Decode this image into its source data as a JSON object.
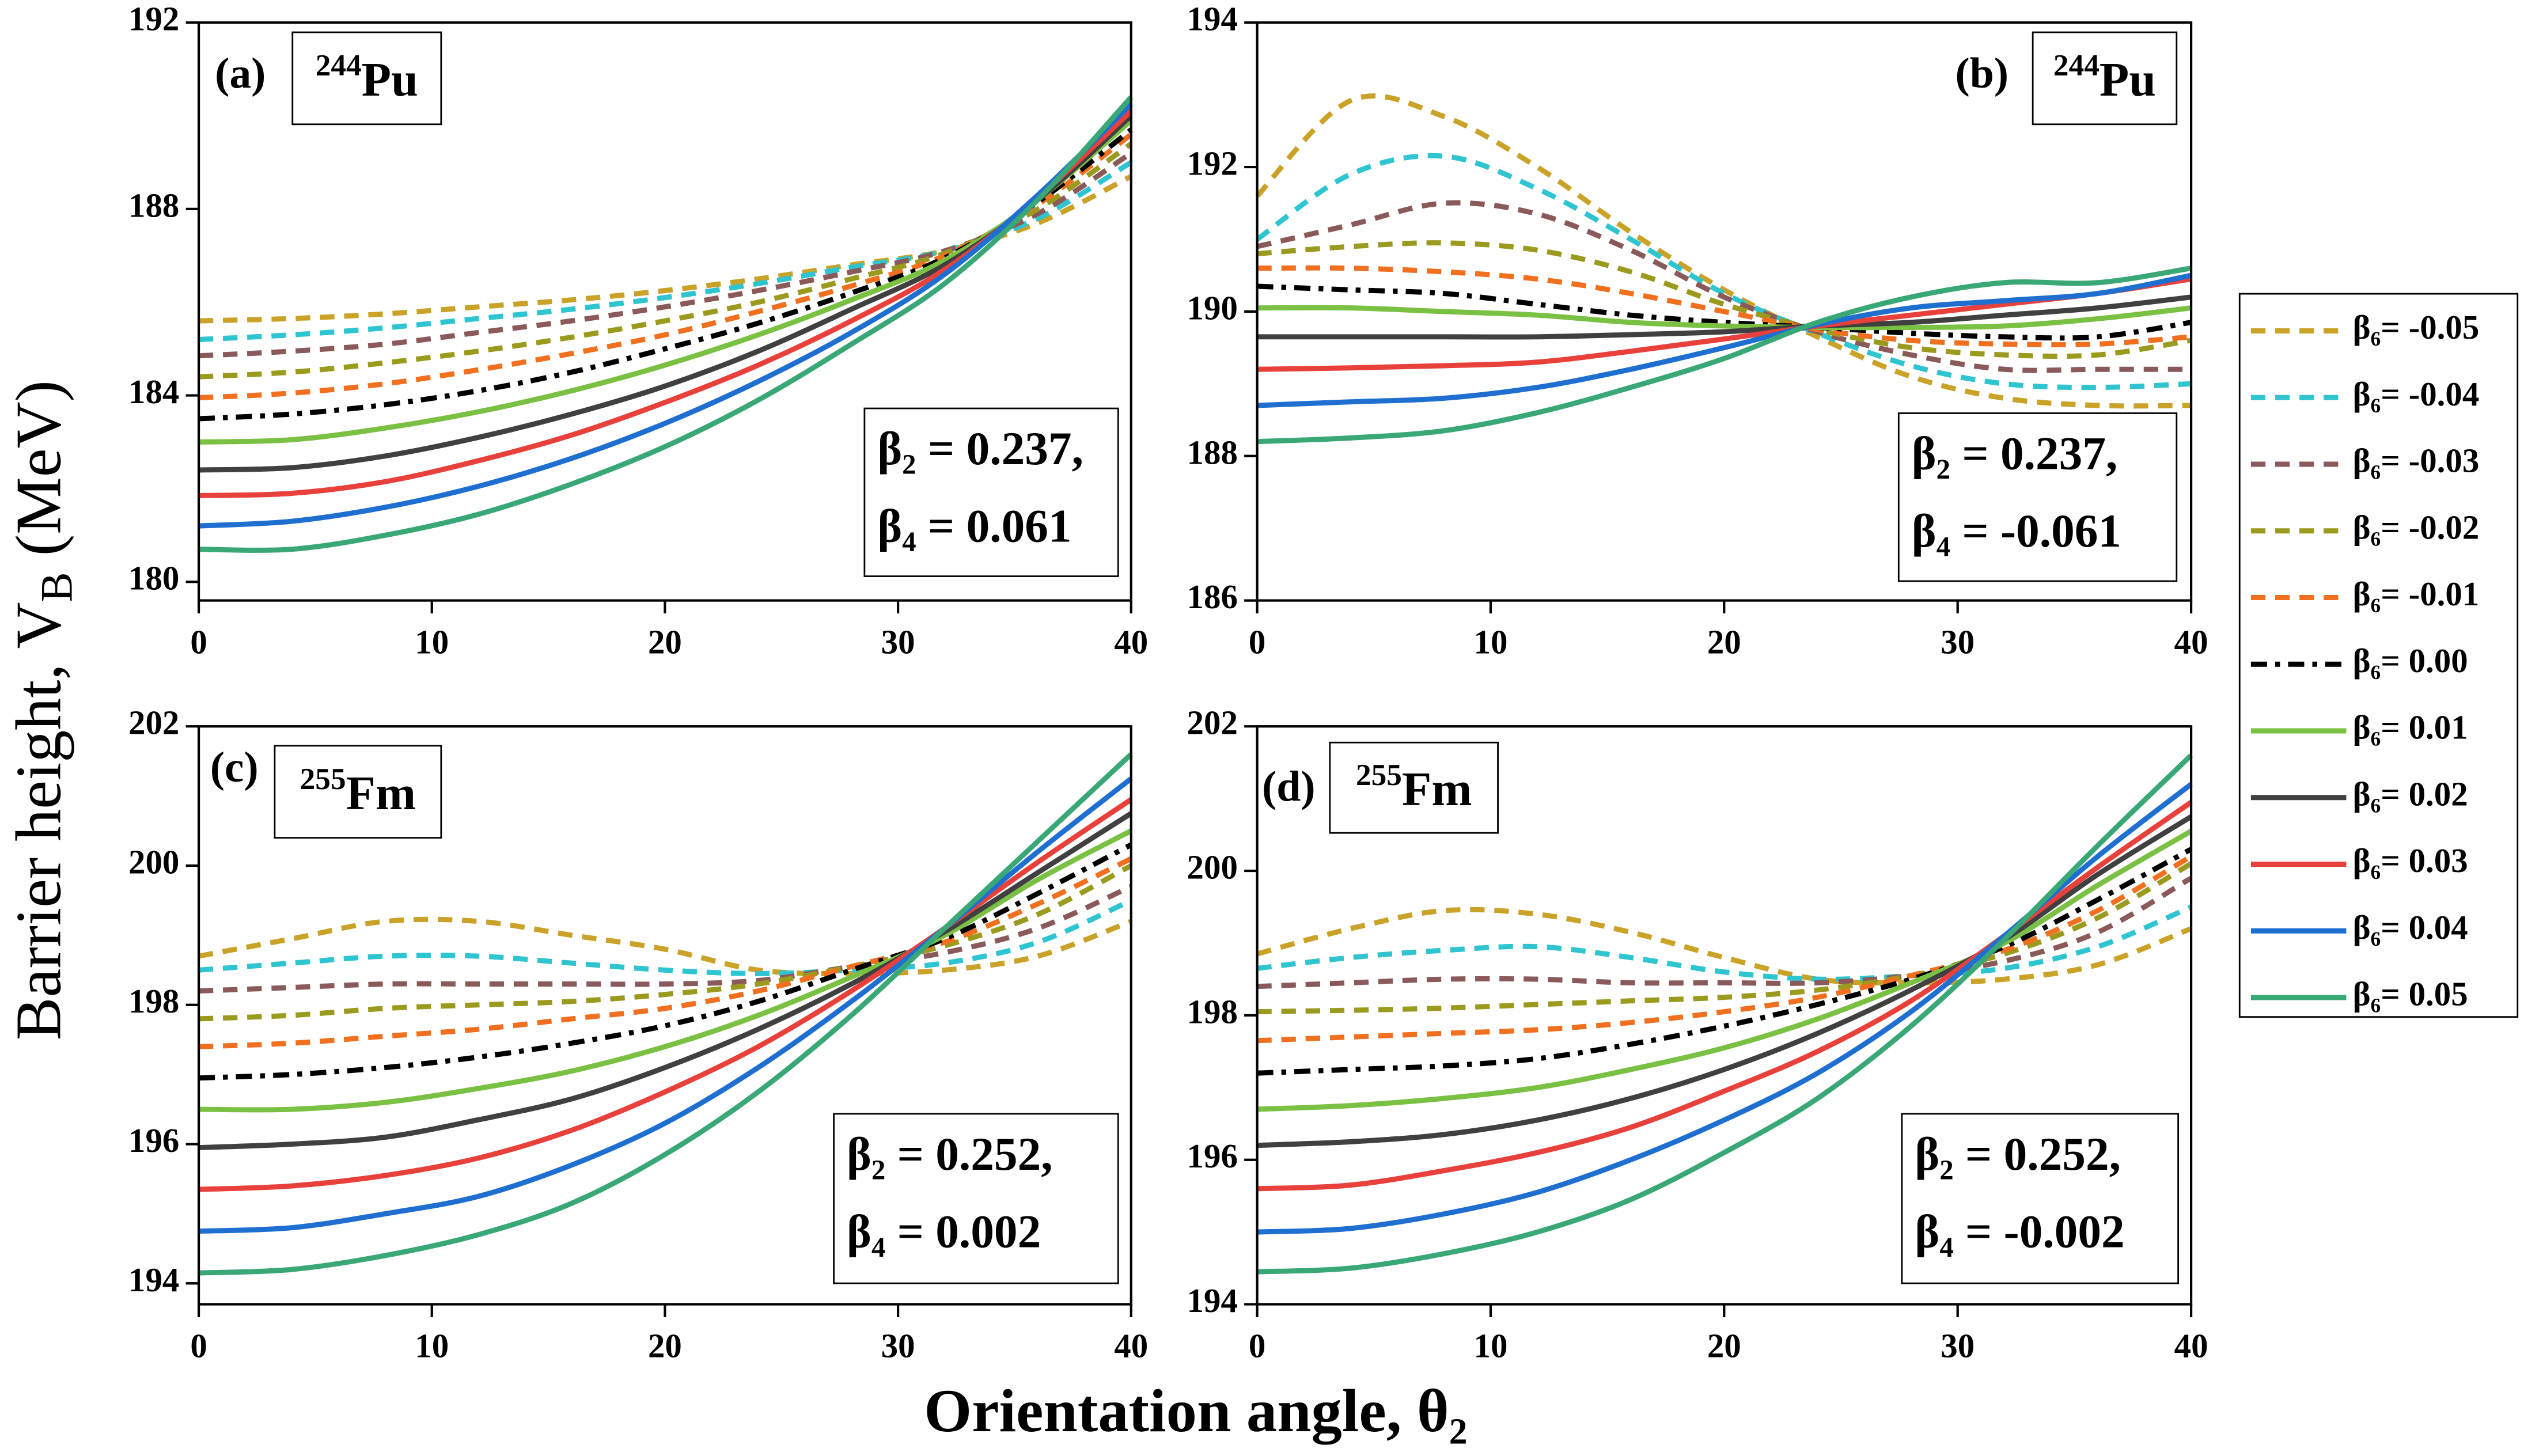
{
  "figure": {
    "xlabel": "Orientation angle,  θ₂",
    "ylabel": {
      "text": "Barrier height,  V",
      "sub": "B",
      "tail": " (MeV)"
    }
  },
  "legend": {
    "entries": [
      {
        "name": "β₆= -0.05",
        "color": "#c9a227",
        "style": "dash"
      },
      {
        "name": "β₆= -0.04",
        "color": "#2ec4d0",
        "style": "dash"
      },
      {
        "name": "β₆= -0.03",
        "color": "#8a5a5a",
        "style": "dash"
      },
      {
        "name": "β₆= -0.02",
        "color": "#9a9a1e",
        "style": "dash"
      },
      {
        "name": "β₆= -0.01",
        "color": "#f07020",
        "style": "dash"
      },
      {
        "name": "β₆= 0.00",
        "color": "#000000",
        "style": "dashdot"
      },
      {
        "name": "β₆= 0.01",
        "color": "#7ac143",
        "style": "solid"
      },
      {
        "name": "β₆= 0.02",
        "color": "#404040",
        "style": "solid"
      },
      {
        "name": "β₆= 0.03",
        "color": "#e8413c",
        "style": "solid"
      },
      {
        "name": "β₆= 0.04",
        "color": "#1f6fd1",
        "style": "solid"
      },
      {
        "name": "β₆= 0.05",
        "color": "#3aa876",
        "style": "solid"
      }
    ]
  },
  "chart_data": [
    {
      "type": "line",
      "label": "(a)",
      "nucleus": {
        "mass": "244",
        "symbol": "Pu"
      },
      "annotation": [
        "β₂ = 0.237,",
        "β₄ = 0.061"
      ],
      "x": [
        0,
        4,
        8,
        12,
        16,
        20,
        24,
        28,
        32,
        36,
        40
      ],
      "xlim": [
        0,
        40
      ],
      "xticks": [
        0,
        10,
        20,
        30,
        40
      ],
      "ylim": [
        179.6,
        192
      ],
      "yticks": [
        180,
        184,
        188,
        192
      ],
      "series": [
        {
          "values": [
            185.6,
            185.65,
            185.75,
            185.9,
            186.05,
            186.25,
            186.5,
            186.8,
            187.1,
            187.7,
            188.7
          ]
        },
        {
          "values": [
            185.2,
            185.3,
            185.45,
            185.65,
            185.85,
            186.1,
            186.4,
            186.75,
            187.1,
            187.8,
            189.0
          ]
        },
        {
          "values": [
            184.85,
            184.95,
            185.1,
            185.35,
            185.6,
            185.9,
            186.25,
            186.65,
            187.1,
            187.9,
            189.2
          ]
        },
        {
          "values": [
            184.4,
            184.5,
            184.7,
            184.95,
            185.25,
            185.6,
            186.0,
            186.5,
            187.05,
            188.0,
            189.4
          ]
        },
        {
          "values": [
            183.95,
            184.05,
            184.25,
            184.55,
            184.9,
            185.3,
            185.8,
            186.35,
            187.0,
            188.1,
            189.6
          ]
        },
        {
          "values": [
            183.5,
            183.6,
            183.8,
            184.1,
            184.5,
            185.0,
            185.55,
            186.2,
            186.95,
            188.15,
            189.7
          ]
        },
        {
          "values": [
            183.0,
            183.05,
            183.3,
            183.65,
            184.1,
            184.65,
            185.3,
            186.05,
            186.9,
            188.2,
            189.9
          ]
        },
        {
          "values": [
            182.4,
            182.45,
            182.7,
            183.1,
            183.6,
            184.2,
            184.95,
            185.85,
            186.8,
            188.2,
            190.0
          ]
        },
        {
          "values": [
            181.85,
            181.9,
            182.15,
            182.6,
            183.15,
            183.85,
            184.65,
            185.6,
            186.7,
            188.25,
            190.1
          ]
        },
        {
          "values": [
            181.2,
            181.3,
            181.6,
            182.05,
            182.65,
            183.4,
            184.3,
            185.35,
            186.6,
            188.3,
            190.25
          ]
        },
        {
          "values": [
            180.7,
            180.7,
            181.0,
            181.45,
            182.1,
            182.9,
            183.9,
            185.1,
            186.4,
            188.2,
            190.4
          ]
        }
      ]
    },
    {
      "type": "line",
      "label": "(b)",
      "nucleus": {
        "mass": "244",
        "symbol": "Pu"
      },
      "annotation": [
        "β₂ = 0.237,",
        "β₄ = -0.061"
      ],
      "x": [
        0,
        4,
        8,
        12,
        16,
        20,
        24,
        28,
        32,
        36,
        40
      ],
      "xlim": [
        0,
        40
      ],
      "xticks": [
        0,
        10,
        20,
        30,
        40
      ],
      "ylim": [
        186,
        194
      ],
      "yticks": [
        186,
        188,
        190,
        192,
        194
      ],
      "series": [
        {
          "values": [
            191.6,
            192.92,
            192.7,
            192.0,
            191.1,
            190.3,
            189.65,
            189.1,
            188.8,
            188.7,
            188.7
          ]
        },
        {
          "values": [
            191.0,
            191.9,
            192.15,
            191.7,
            191.0,
            190.25,
            189.7,
            189.25,
            189.0,
            188.95,
            189.0
          ]
        },
        {
          "values": [
            190.9,
            191.2,
            191.5,
            191.35,
            190.85,
            190.2,
            189.72,
            189.4,
            189.2,
            189.2,
            189.2
          ]
        },
        {
          "values": [
            190.8,
            190.9,
            190.95,
            190.85,
            190.55,
            190.1,
            189.75,
            189.5,
            189.4,
            189.4,
            189.6
          ]
        },
        {
          "values": [
            190.6,
            190.6,
            190.55,
            190.45,
            190.25,
            190.0,
            189.75,
            189.6,
            189.55,
            189.55,
            189.65
          ]
        },
        {
          "values": [
            190.35,
            190.3,
            190.25,
            190.1,
            189.95,
            189.85,
            189.78,
            189.7,
            189.65,
            189.65,
            189.85
          ]
        },
        {
          "values": [
            190.05,
            190.05,
            190.0,
            189.95,
            189.85,
            189.8,
            189.78,
            189.78,
            189.8,
            189.9,
            190.05
          ]
        },
        {
          "values": [
            189.65,
            189.65,
            189.65,
            189.65,
            189.68,
            189.72,
            189.8,
            189.85,
            189.95,
            190.05,
            190.2
          ]
        },
        {
          "values": [
            189.2,
            189.22,
            189.25,
            189.3,
            189.45,
            189.62,
            189.8,
            189.95,
            190.1,
            190.25,
            190.45
          ]
        },
        {
          "values": [
            188.7,
            188.75,
            188.8,
            188.95,
            189.2,
            189.5,
            189.82,
            190.05,
            190.15,
            190.25,
            190.5
          ]
        },
        {
          "values": [
            188.2,
            188.25,
            188.35,
            188.6,
            188.95,
            189.35,
            189.85,
            190.2,
            190.4,
            190.4,
            190.6
          ]
        }
      ]
    },
    {
      "type": "line",
      "label": "(c)",
      "nucleus": {
        "mass": "255",
        "symbol": "Fm"
      },
      "annotation": [
        "β₂ = 0.252,",
        "β₄ = 0.002"
      ],
      "x": [
        0,
        4,
        8,
        12,
        16,
        20,
        24,
        28,
        32,
        36,
        40
      ],
      "xlim": [
        0,
        40
      ],
      "xticks": [
        0,
        10,
        20,
        30,
        40
      ],
      "ylim": [
        193.7,
        202
      ],
      "yticks": [
        194,
        196,
        198,
        200,
        202
      ],
      "series": [
        {
          "values": [
            198.7,
            198.95,
            199.2,
            199.2,
            199.0,
            198.8,
            198.5,
            198.45,
            198.5,
            198.7,
            199.2
          ]
        },
        {
          "values": [
            198.5,
            198.6,
            198.7,
            198.7,
            198.6,
            198.5,
            198.45,
            198.5,
            198.6,
            198.9,
            199.5
          ]
        },
        {
          "values": [
            198.2,
            198.25,
            198.3,
            198.3,
            198.3,
            198.3,
            198.35,
            198.55,
            198.75,
            199.1,
            199.7
          ]
        },
        {
          "values": [
            197.8,
            197.85,
            197.95,
            198.0,
            198.05,
            198.15,
            198.3,
            198.55,
            198.85,
            199.3,
            200.0
          ]
        },
        {
          "values": [
            197.4,
            197.45,
            197.55,
            197.65,
            197.8,
            197.95,
            198.2,
            198.55,
            198.9,
            199.45,
            200.1
          ]
        },
        {
          "values": [
            196.95,
            197.0,
            197.1,
            197.25,
            197.45,
            197.7,
            198.05,
            198.5,
            198.95,
            199.6,
            200.3
          ]
        },
        {
          "values": [
            196.5,
            196.5,
            196.6,
            196.8,
            197.05,
            197.4,
            197.85,
            198.4,
            199.0,
            199.8,
            200.5
          ]
        },
        {
          "values": [
            195.95,
            196.0,
            196.1,
            196.35,
            196.65,
            197.1,
            197.65,
            198.3,
            199.05,
            199.9,
            200.75
          ]
        },
        {
          "values": [
            195.35,
            195.4,
            195.55,
            195.8,
            196.2,
            196.75,
            197.4,
            198.2,
            199.1,
            200.05,
            200.95
          ]
        },
        {
          "values": [
            194.75,
            194.8,
            195.0,
            195.25,
            195.7,
            196.3,
            197.1,
            198.05,
            199.1,
            200.2,
            201.25
          ]
        },
        {
          "values": [
            194.15,
            194.2,
            194.4,
            194.7,
            195.15,
            195.85,
            196.75,
            197.85,
            199.1,
            200.35,
            201.6
          ]
        }
      ]
    },
    {
      "type": "line",
      "label": "(d)",
      "nucleus": {
        "mass": "255",
        "symbol": "Fm"
      },
      "annotation": [
        "β₂ = 0.252,",
        "β₄ = -0.002"
      ],
      "x": [
        0,
        4,
        8,
        12,
        16,
        20,
        24,
        28,
        32,
        36,
        40
      ],
      "xlim": [
        0,
        40
      ],
      "xticks": [
        0,
        10,
        20,
        30,
        40
      ],
      "ylim": [
        194,
        202
      ],
      "yticks": [
        194,
        196,
        198,
        200,
        202
      ],
      "series": [
        {
          "values": [
            198.85,
            199.2,
            199.45,
            199.4,
            199.15,
            198.8,
            198.5,
            198.45,
            198.5,
            198.7,
            199.2
          ]
        },
        {
          "values": [
            198.65,
            198.8,
            198.9,
            198.95,
            198.8,
            198.6,
            198.5,
            198.55,
            198.65,
            198.95,
            199.5
          ]
        },
        {
          "values": [
            198.4,
            198.45,
            198.5,
            198.5,
            198.45,
            198.45,
            198.45,
            198.55,
            198.75,
            199.15,
            199.9
          ]
        },
        {
          "values": [
            198.05,
            198.07,
            198.1,
            198.15,
            198.2,
            198.25,
            198.35,
            198.55,
            198.85,
            199.35,
            200.1
          ]
        },
        {
          "values": [
            197.65,
            197.7,
            197.75,
            197.8,
            197.9,
            198.05,
            198.25,
            198.55,
            198.9,
            199.45,
            200.2
          ]
        },
        {
          "values": [
            197.2,
            197.25,
            197.3,
            197.4,
            197.6,
            197.85,
            198.15,
            198.5,
            198.95,
            199.6,
            200.3
          ]
        },
        {
          "values": [
            196.7,
            196.75,
            196.85,
            197.0,
            197.25,
            197.55,
            197.95,
            198.45,
            199.0,
            199.8,
            200.55
          ]
        },
        {
          "values": [
            196.2,
            196.25,
            196.35,
            196.55,
            196.85,
            197.25,
            197.75,
            198.35,
            199.05,
            199.95,
            200.75
          ]
        },
        {
          "values": [
            195.6,
            195.65,
            195.85,
            196.1,
            196.45,
            196.95,
            197.5,
            198.2,
            199.1,
            200.05,
            200.95
          ]
        },
        {
          "values": [
            195.0,
            195.05,
            195.25,
            195.55,
            196.0,
            196.55,
            197.2,
            198.05,
            199.1,
            200.2,
            201.2
          ]
        },
        {
          "values": [
            194.45,
            194.5,
            194.7,
            195.0,
            195.45,
            196.1,
            196.85,
            197.85,
            199.05,
            200.35,
            201.6
          ]
        }
      ]
    }
  ]
}
